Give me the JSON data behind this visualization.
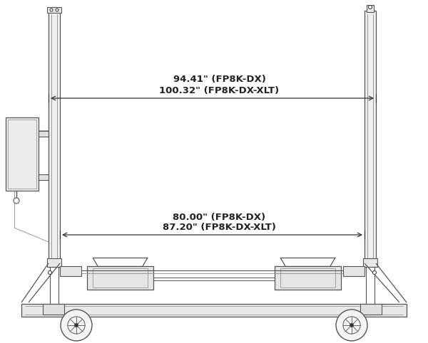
{
  "bg_color": "#ffffff",
  "line_color": "#888888",
  "line_color_dark": "#555555",
  "line_color_darker": "#333333",
  "arrow_color": "#333333",
  "text_color": "#222222",
  "dim1_label1": "94.41\" (FP8K-DX)",
  "dim1_label2": "100.32\" (FP8K-DX-XLT)",
  "dim2_label1": "80.00\" (FP8K-DX)",
  "dim2_label2": "87.20\" (FP8K-DX-XLT)",
  "figsize": [
    6.0,
    4.82
  ],
  "dpi": 100
}
